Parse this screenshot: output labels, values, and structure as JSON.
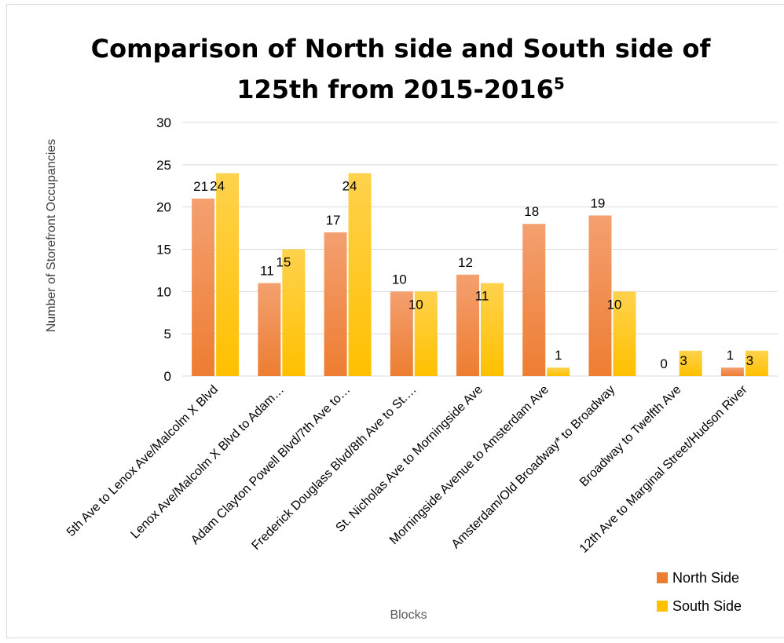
{
  "chart_data": {
    "type": "bar",
    "title": "Comparison of North side and South side of 125th from 2015-2016",
    "title_superscript": "5",
    "xlabel": "Blocks",
    "ylabel": "Number of Storefront Occupancies",
    "ylim": [
      0,
      30
    ],
    "yticks": [
      0,
      5,
      10,
      15,
      20,
      25,
      30
    ],
    "grid": true,
    "legend_position": "bottom-right",
    "categories": [
      "5th Ave to Lenox Ave/Malcolm X Blvd",
      "Lenox Ave/Malcolm X Blvd to Adam…",
      "Adam Clayton Powell Blvd/7th Ave to…",
      "Frederick Douglass Blvd/8th Ave to St.…",
      "St. Nicholas Ave to Morningside Ave",
      "Morningside Avenue to Amsterdam Ave",
      "Amsterdam/Old Broadway* to Broadway",
      "Broadway to Twelfth Ave",
      "12th Ave to Marginal Street/Hudson River"
    ],
    "series": [
      {
        "name": "North Side",
        "color": "#ED7D31",
        "color_light": "#F4A070",
        "values": [
          21,
          11,
          17,
          10,
          12,
          18,
          19,
          0,
          1
        ]
      },
      {
        "name": "South Side",
        "color": "#FFC000",
        "color_light": "#FFD24D",
        "values": [
          24,
          15,
          24,
          10,
          11,
          1,
          10,
          3,
          3
        ]
      }
    ]
  }
}
